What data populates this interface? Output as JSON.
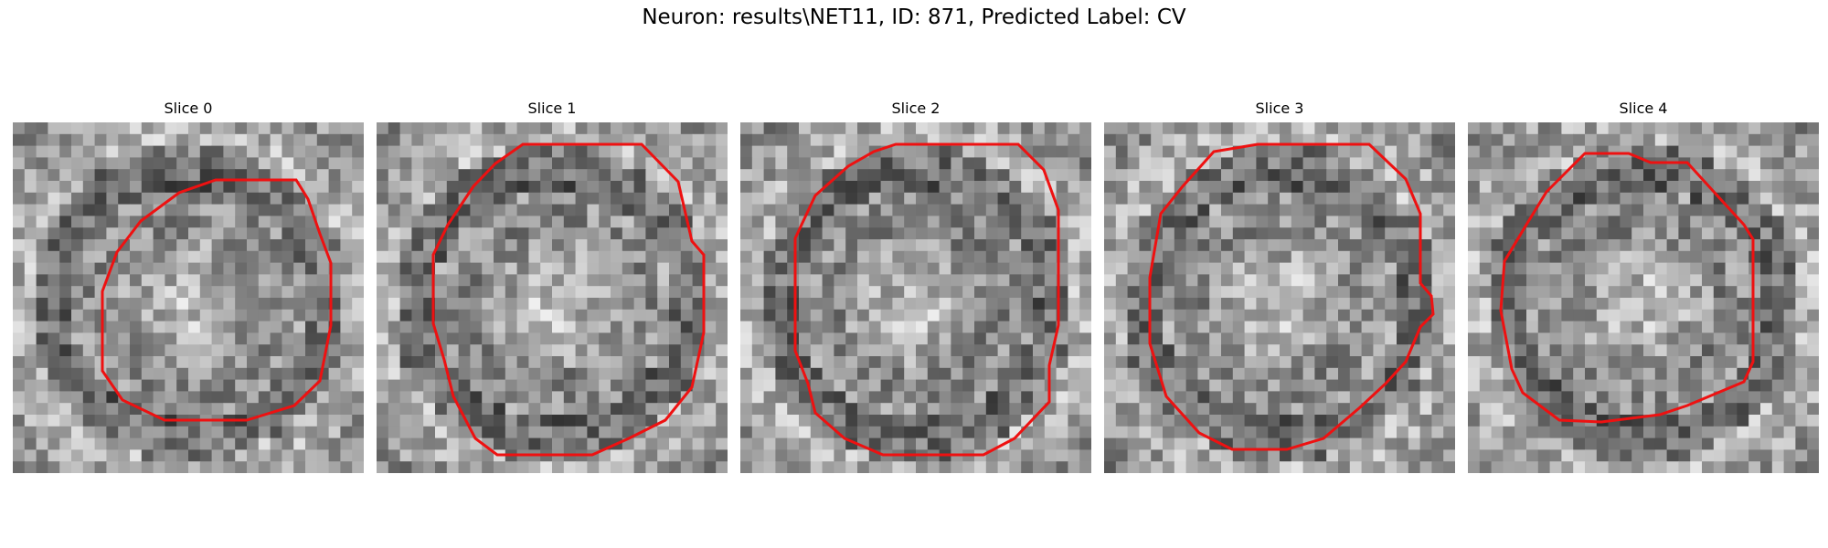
{
  "figure": {
    "title": "Neuron: results\\NET11, ID: 871, Predicted Label: CV",
    "outline_color": "#ee1111"
  },
  "panels": [
    {
      "title": "Slice 0"
    },
    {
      "title": "Slice 1"
    },
    {
      "title": "Slice 2"
    },
    {
      "title": "Slice 3"
    },
    {
      "title": "Slice 4"
    }
  ]
}
